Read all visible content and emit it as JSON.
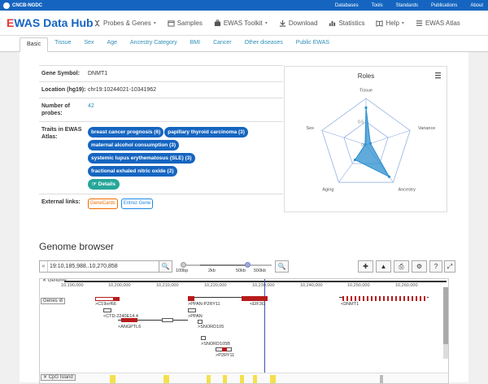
{
  "topbar": {
    "brand": "CNCB-NGDC",
    "links": [
      "Databases",
      "Tools",
      "Standards",
      "Publications",
      "About"
    ]
  },
  "nav": {
    "logo_e": "E",
    "logo_rest": "WAS Data Hub",
    "items": [
      {
        "label": "Probes & Genes",
        "icon": "dna-icon",
        "caret": "▾"
      },
      {
        "label": "Samples",
        "icon": "folder-icon",
        "caret": ""
      },
      {
        "label": "EWAS Toolkit",
        "icon": "toolbox-icon",
        "caret": "▾"
      },
      {
        "label": "Download",
        "icon": "download-icon",
        "caret": ""
      },
      {
        "label": "Statistics",
        "icon": "bar-chart-icon",
        "caret": ""
      },
      {
        "label": "Help",
        "icon": "help-book-icon",
        "caret": "▾"
      },
      {
        "label": "EWAS Atlas",
        "icon": "atlas-icon",
        "caret": ""
      }
    ]
  },
  "tabs": [
    "Basic",
    "Tissue",
    "Sex",
    "Age",
    "Ancestry Category",
    "BMI",
    "Cancer",
    "Other diseases",
    "Public EWAS"
  ],
  "info": {
    "gene_symbol_label": "Gene Symbol:",
    "gene_symbol": "DNMT1",
    "location_label": "Location (hg19):",
    "location": "chr19:10244021-10341962",
    "probes_label": "Number of probes:",
    "probes": "42",
    "traits_label": "Traits in EWAS Atlas:",
    "traits": [
      "breast cancer prognosis (6)",
      "papillary thyroid carcinoma (3)",
      "maternal alcohol consumption (3)",
      "systemic lupus erythematosus (SLE) (3)",
      "fractional exhaled nitric oxide (2)"
    ],
    "details_label": "Details",
    "external_label": "External links:",
    "external": [
      "GeneCards",
      "Entrez Gene"
    ]
  },
  "roles": {
    "title": "Roles",
    "menu_icon": "hamburger-menu-icon",
    "axes": [
      "Tissue",
      "Variance",
      "Ancestry",
      "Aging",
      "Sex"
    ],
    "values": [
      0.8,
      0.1,
      0.85,
      0.4,
      0.0
    ],
    "ticks": [
      "0.5",
      "0"
    ],
    "fill_color": "#2b8fcf"
  },
  "genome": {
    "title": "Genome browser",
    "locus": "19:10,185,988..10,270,858",
    "slider_labels": [
      "100bp",
      "2kb",
      "50kb",
      "500kb"
    ],
    "ruler": [
      "10,190,000",
      "10,200,000",
      "10,210,000",
      "10,220,000",
      "10,230,000",
      "10,240,000",
      "10,250,000",
      "10,260,000"
    ],
    "track_genome": "Genome",
    "track_genes": "Genes",
    "track_cpg": "CpG Island",
    "genes": [
      ">C19orf66",
      "<CTD-2240E14.4",
      "<ANGPTL6",
      ">PPAN-P2RY11",
      ">PPAN",
      ">SNORD105",
      ">SNORD105B",
      ">P2RY11",
      "<EIF3G",
      "<DNMT1"
    ]
  }
}
